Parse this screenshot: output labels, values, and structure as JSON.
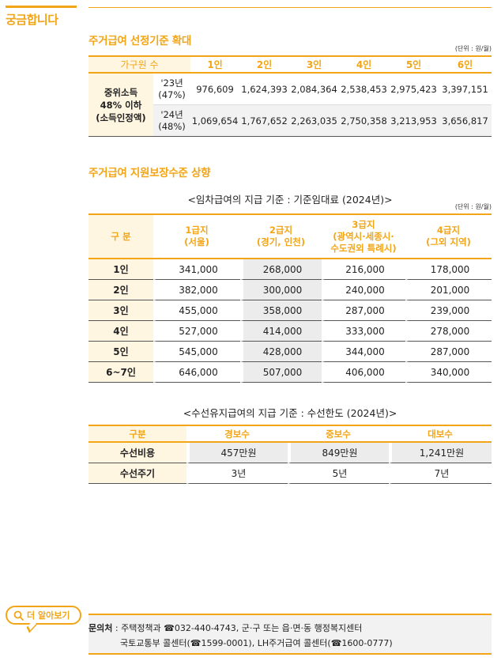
{
  "page": {
    "side_title": "궁금합니다"
  },
  "section1": {
    "title": "주거급여 선정기준 확대",
    "unit": "(단위 : 원/월)",
    "header_first": "가구원 수",
    "columns": [
      "1인",
      "2인",
      "3인",
      "4인",
      "5인",
      "6인"
    ],
    "row_label_lines": [
      "중위소득",
      "48% 이하",
      "(소득인정액)"
    ],
    "rows": [
      {
        "year_line1": "'23년",
        "year_line2": "(47%)",
        "values": [
          "976,609",
          "1,624,393",
          "2,084,364",
          "2,538,453",
          "2,975,423",
          "3,397,151"
        ]
      },
      {
        "year_line1": "'24년",
        "year_line2": "(48%)",
        "values": [
          "1,069,654",
          "1,767,652",
          "2,263,035",
          "2,750,358",
          "3,213,953",
          "3,656,817"
        ]
      }
    ]
  },
  "section2": {
    "title": "주거급여 지원보장수준 상향",
    "subtitle": "<임차급여의 지급 기준 : 기준임대료 (2024년)>",
    "unit": "(단위 : 원/월)",
    "header_first": "구 분",
    "columns": [
      {
        "line1": "1급지",
        "line2": "(서울)",
        "line3": ""
      },
      {
        "line1": "2급지",
        "line2": "(경기, 인천)",
        "line3": ""
      },
      {
        "line1": "3급지",
        "line2": "(광역시·세종시·",
        "line3": "수도권외 특례시)"
      },
      {
        "line1": "4급지",
        "line2": "(그외 지역)",
        "line3": ""
      }
    ],
    "rows": [
      {
        "label": "1인",
        "values": [
          "341,000",
          "268,000",
          "216,000",
          "178,000"
        ]
      },
      {
        "label": "2인",
        "values": [
          "382,000",
          "300,000",
          "240,000",
          "201,000"
        ]
      },
      {
        "label": "3인",
        "values": [
          "455,000",
          "358,000",
          "287,000",
          "239,000"
        ]
      },
      {
        "label": "4인",
        "values": [
          "527,000",
          "414,000",
          "333,000",
          "278,000"
        ]
      },
      {
        "label": "5인",
        "values": [
          "545,000",
          "428,000",
          "344,000",
          "287,000"
        ]
      },
      {
        "label": "6~7인",
        "values": [
          "646,000",
          "507,000",
          "406,000",
          "340,000"
        ]
      }
    ]
  },
  "section3": {
    "subtitle": "<수선유지급여의 지급 기준 : 수선한도 (2024년)>",
    "header_first": "구분",
    "columns": [
      "경보수",
      "중보수",
      "대보수"
    ],
    "rows": [
      {
        "label": "수선비용",
        "values": [
          "457만원",
          "849만원",
          "1,241만원"
        ]
      },
      {
        "label": "수선주기",
        "values": [
          "3년",
          "5년",
          "7년"
        ]
      }
    ]
  },
  "footer": {
    "badge_label": "더 알아보기",
    "inquiry_label": "문의처",
    "line1": " : 주택정책과 ☎032-440-4743, 군·구 또는 읍·면·동 행정복지센터",
    "line2": "국토교통부 콜센터(☎1599-0001), LH주거급여 콜센터(☎1600-0777)"
  },
  "colors": {
    "accent": "#f2a516",
    "row_header_bg": "#fff6e2",
    "shade": "#ececec"
  },
  "icons": {
    "badge_icon": "search-icon"
  }
}
